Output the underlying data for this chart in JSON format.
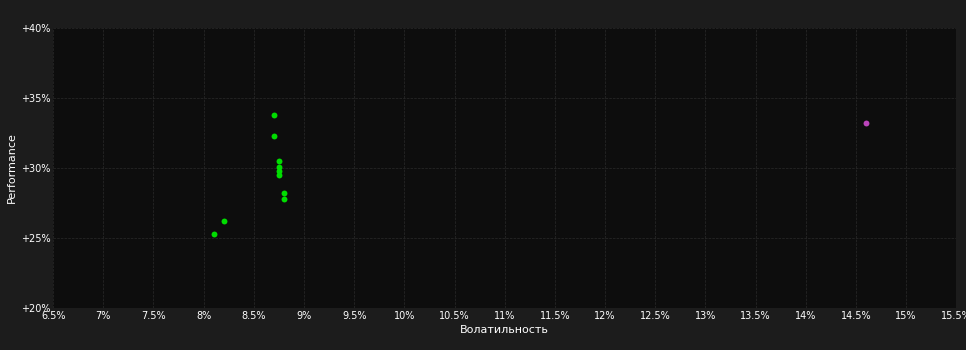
{
  "background_color": "#1c1c1c",
  "plot_bg_color": "#0d0d0d",
  "grid_color": "#2a2a2a",
  "text_color": "#ffffff",
  "xlabel": "Волатильность",
  "ylabel": "Performance",
  "xlim": [
    0.065,
    0.155
  ],
  "ylim": [
    0.2,
    0.4
  ],
  "xticks": [
    0.065,
    0.07,
    0.075,
    0.08,
    0.085,
    0.09,
    0.095,
    0.1,
    0.105,
    0.11,
    0.115,
    0.12,
    0.125,
    0.13,
    0.135,
    0.14,
    0.145,
    0.15,
    0.155
  ],
  "yticks": [
    0.2,
    0.25,
    0.3,
    0.35,
    0.4
  ],
  "ytick_labels": [
    "+20%",
    "+25%",
    "+30%",
    "+35%",
    "+40%"
  ],
  "xtick_labels": [
    "6.5%",
    "7%",
    "7.5%",
    "8%",
    "8.5%",
    "9%",
    "9.5%",
    "10%",
    "10.5%",
    "11%",
    "11.5%",
    "12%",
    "12.5%",
    "13%",
    "13.5%",
    "14%",
    "14.5%",
    "15%",
    "15.5%"
  ],
  "green_points": [
    [
      0.087,
      0.338
    ],
    [
      0.087,
      0.323
    ],
    [
      0.0875,
      0.305
    ],
    [
      0.0875,
      0.301
    ],
    [
      0.0875,
      0.298
    ],
    [
      0.0875,
      0.295
    ],
    [
      0.088,
      0.282
    ],
    [
      0.088,
      0.278
    ],
    [
      0.082,
      0.262
    ],
    [
      0.081,
      0.253
    ]
  ],
  "magenta_points": [
    [
      0.146,
      0.332
    ]
  ],
  "green_color": "#00dd00",
  "magenta_color": "#bb44bb",
  "marker_size": 18,
  "fontsize_ticks": 7,
  "fontsize_label": 8
}
